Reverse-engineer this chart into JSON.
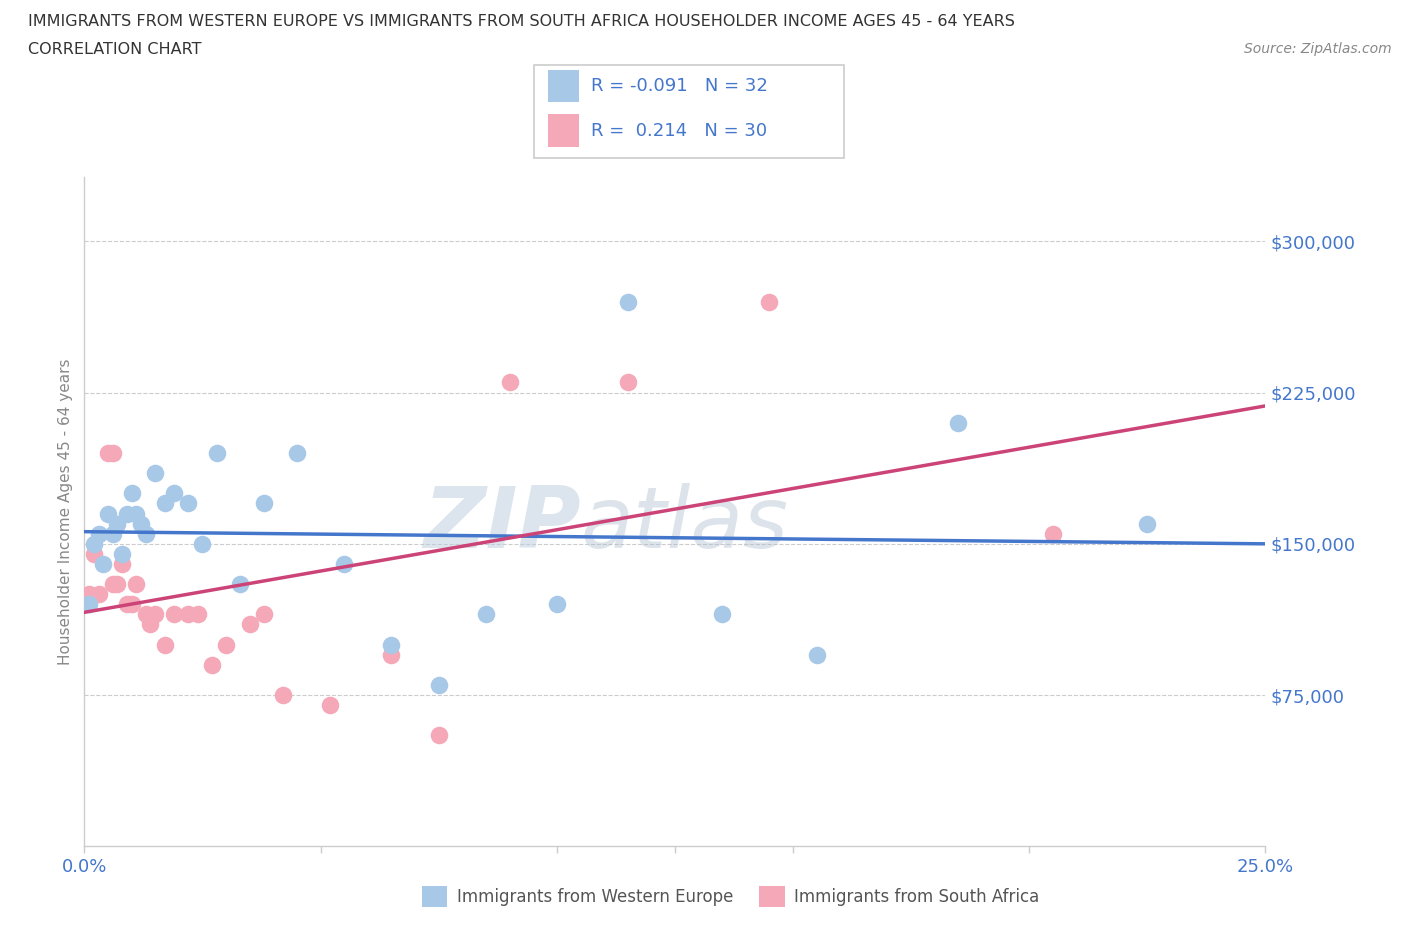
{
  "title_line1": "IMMIGRANTS FROM WESTERN EUROPE VS IMMIGRANTS FROM SOUTH AFRICA HOUSEHOLDER INCOME AGES 45 - 64 YEARS",
  "title_line2": "CORRELATION CHART",
  "source": "Source: ZipAtlas.com",
  "ylabel": "Householder Income Ages 45 - 64 years",
  "y_tick_labels": [
    "$75,000",
    "$150,000",
    "$225,000",
    "$300,000"
  ],
  "y_tick_values": [
    75000,
    150000,
    225000,
    300000
  ],
  "y_lim": [
    0,
    332000
  ],
  "x_lim": [
    0.0,
    0.25
  ],
  "watermark_zip": "ZIP",
  "watermark_atlas": "atlas",
  "blue_color": "#A8C8E8",
  "pink_color": "#F4A8B8",
  "blue_line_color": "#4477CC",
  "pink_line_color": "#CC4477",
  "label_color": "#4477CC",
  "R_blue": -0.091,
  "N_blue": 32,
  "R_pink": 0.214,
  "N_pink": 30,
  "blue_scatter_x": [
    0.001,
    0.002,
    0.003,
    0.004,
    0.005,
    0.006,
    0.007,
    0.008,
    0.009,
    0.01,
    0.011,
    0.012,
    0.013,
    0.015,
    0.017,
    0.019,
    0.022,
    0.025,
    0.028,
    0.033,
    0.038,
    0.045,
    0.055,
    0.065,
    0.075,
    0.085,
    0.1,
    0.115,
    0.135,
    0.155,
    0.185,
    0.225
  ],
  "blue_scatter_y": [
    120000,
    150000,
    155000,
    140000,
    165000,
    155000,
    160000,
    145000,
    165000,
    175000,
    165000,
    160000,
    155000,
    185000,
    170000,
    175000,
    170000,
    150000,
    195000,
    130000,
    170000,
    195000,
    140000,
    100000,
    80000,
    115000,
    120000,
    270000,
    115000,
    95000,
    210000,
    160000
  ],
  "pink_scatter_x": [
    0.001,
    0.002,
    0.003,
    0.005,
    0.006,
    0.006,
    0.007,
    0.008,
    0.009,
    0.01,
    0.011,
    0.013,
    0.014,
    0.015,
    0.017,
    0.019,
    0.022,
    0.024,
    0.027,
    0.03,
    0.035,
    0.038,
    0.042,
    0.052,
    0.065,
    0.075,
    0.09,
    0.115,
    0.145,
    0.205
  ],
  "pink_scatter_y": [
    125000,
    145000,
    125000,
    195000,
    195000,
    130000,
    130000,
    140000,
    120000,
    120000,
    130000,
    115000,
    110000,
    115000,
    100000,
    115000,
    115000,
    115000,
    90000,
    100000,
    110000,
    115000,
    75000,
    70000,
    95000,
    55000,
    230000,
    230000,
    270000,
    155000
  ],
  "grid_color": "#CCCCCC",
  "spine_color": "#CCCCCC",
  "bottom_legend_blue_label": "Immigrants from Western Europe",
  "bottom_legend_pink_label": "Immigrants from South Africa"
}
